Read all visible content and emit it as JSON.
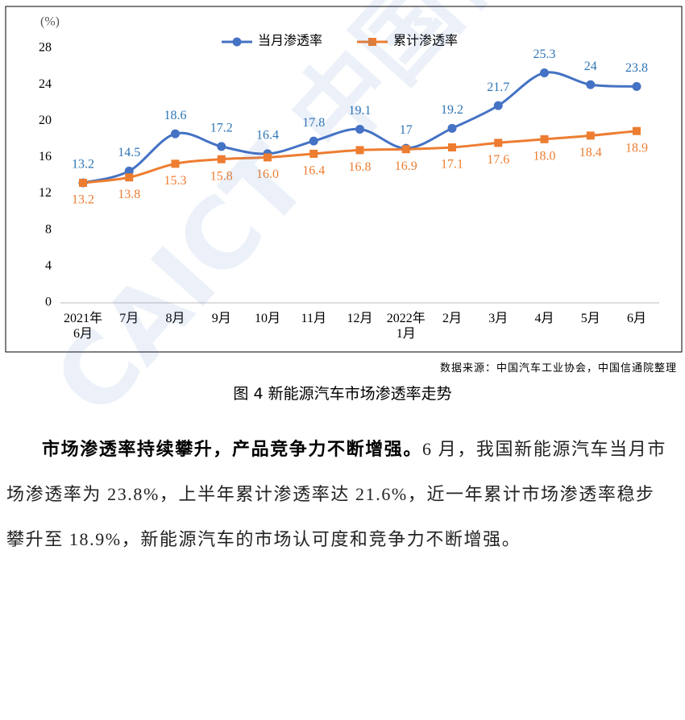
{
  "chart_data": {
    "type": "line",
    "y_unit": "(%)",
    "categories": [
      "2021年\n6月",
      "7月",
      "8月",
      "9月",
      "10月",
      "11月",
      "12月",
      "2022年\n1月",
      "2月",
      "3月",
      "4月",
      "5月",
      "6月"
    ],
    "series": [
      {
        "name": "当月渗透率",
        "color": "#4472c4",
        "marker": "circle",
        "label_color": "#2e75b6",
        "label_position": "above",
        "values": [
          13.2,
          14.5,
          18.6,
          17.2,
          16.4,
          17.8,
          19.1,
          17,
          19.2,
          21.7,
          25.3,
          24,
          23.8
        ]
      },
      {
        "name": "累计渗透率",
        "color": "#ed7d31",
        "marker": "square",
        "label_color": "#ed7d31",
        "label_position": "below",
        "values": [
          13.2,
          13.8,
          15.3,
          15.8,
          16.0,
          16.4,
          16.8,
          16.9,
          17.1,
          17.6,
          18.0,
          18.4,
          18.9
        ],
        "value_labels": [
          "13.2",
          "13.8",
          "15.3",
          "15.8",
          "16.0",
          "16.4",
          "16.8",
          "16.9",
          "17.1",
          "17.6",
          "18.0",
          "18.4",
          "18.9"
        ]
      }
    ],
    "ylim": [
      0,
      28
    ],
    "yticks": [
      0,
      4,
      8,
      12,
      16,
      20,
      24,
      28
    ],
    "grid": false,
    "legend": "top",
    "smooth": true
  },
  "source": "数据来源：中国汽车工业协会，中国信通院整理",
  "caption": "图 4 新能源汽车市场渗透率走势",
  "body": {
    "bold": "市场渗透率持续攀升，产品竞争力不断增强。",
    "text": "6 月，我国新能源汽车当月市场渗透率为 23.8%，上半年累计渗透率达 21.6%，近一年累计市场渗透率稳步攀升至 18.9%，新能源汽车的市场认可度和竞争力不断增强。"
  },
  "watermark": "CAICT 中国信通院"
}
